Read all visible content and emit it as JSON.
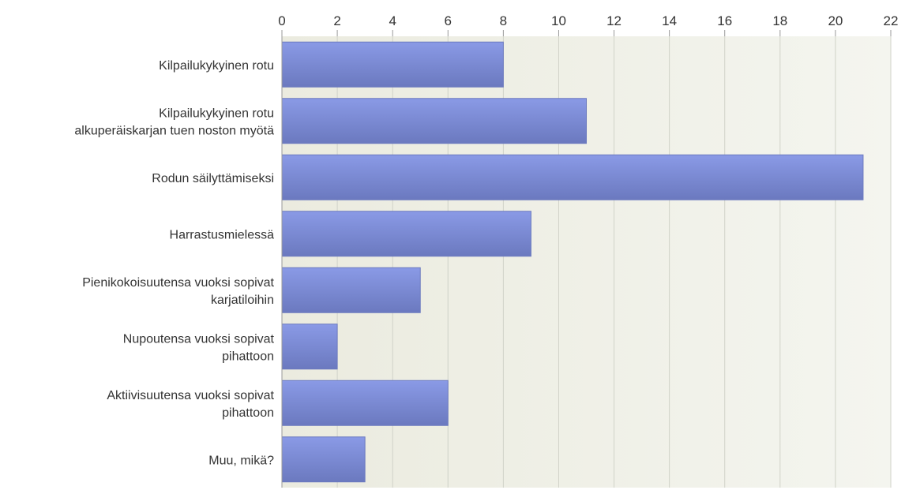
{
  "chart_data": {
    "type": "bar",
    "orientation": "horizontal",
    "categories": [
      [
        "Kilpailukykyinen rotu"
      ],
      [
        "Kilpailukykyinen rotu",
        "alkuperäiskarjan tuen noston myötä"
      ],
      [
        "Rodun säilyttämiseksi"
      ],
      [
        "Harrastusmielessä"
      ],
      [
        "Pienikokoisuutensa vuoksi sopivat",
        "karjatiloihin"
      ],
      [
        "Nupoutensa vuoksi sopivat",
        "pihattoon"
      ],
      [
        "Aktiivisuutensa vuoksi sopivat",
        "pihattoon"
      ],
      [
        "Muu, mikä?"
      ]
    ],
    "values": [
      8,
      11,
      21,
      9,
      5,
      2,
      6,
      3
    ],
    "xlim": [
      0,
      22
    ],
    "xticks": [
      0,
      2,
      4,
      6,
      8,
      10,
      12,
      14,
      16,
      18,
      20,
      22
    ],
    "x_axis_position": "top",
    "grid": true,
    "colors": {
      "bar_top": "#8a9ae6",
      "bar_bottom": "#6b79bf",
      "plot_bg_left": "#ebebdf",
      "plot_bg_right": "#f4f5ef",
      "grid": "#d0d2c8",
      "axis": "#999999"
    }
  }
}
